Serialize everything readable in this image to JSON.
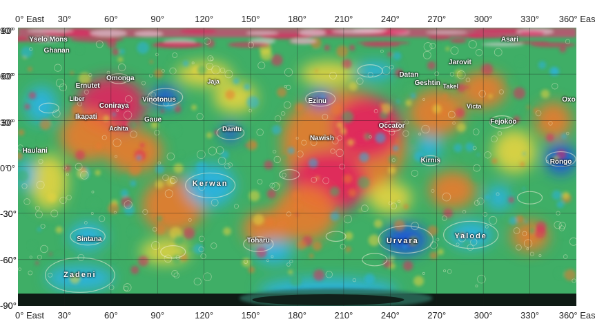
{
  "top_ticks": [
    "0° East",
    "30°",
    "60°",
    "90°",
    "120°",
    "150°",
    "180°",
    "210°",
    "240°",
    "270°",
    "300°",
    "330°",
    "360° East"
  ],
  "bottom_ticks": [
    "0° East",
    "30°",
    "60°",
    "90°",
    "120°",
    "150°",
    "180°",
    "210°",
    "240°",
    "270°",
    "300°",
    "330°",
    "360° East"
  ],
  "lat_ticks": [
    "90°",
    "60°",
    "30°",
    "0°",
    "-30°",
    "-60°",
    "-90°"
  ],
  "features": [
    {
      "name": "Yselo Mons",
      "lon": 15,
      "lat": 82
    },
    {
      "name": "Ghanan",
      "lon": 25,
      "lat": 75
    },
    {
      "name": "Asari",
      "lon": 317,
      "lat": 82
    },
    {
      "name": "Jarovit",
      "lon": 285,
      "lat": 67
    },
    {
      "name": "Datan",
      "lon": 252,
      "lat": 59
    },
    {
      "name": "Geshtin",
      "lon": 264,
      "lat": 54
    },
    {
      "name": "Takel",
      "lon": 279,
      "lat": 52
    },
    {
      "name": "Omonga",
      "lon": 66,
      "lat": 57
    },
    {
      "name": "Ernutet",
      "lon": 45,
      "lat": 52
    },
    {
      "name": "Jaja",
      "lon": 126,
      "lat": 55
    },
    {
      "name": "Liber",
      "lon": 38,
      "lat": 44
    },
    {
      "name": "Vinotonus",
      "lon": 91,
      "lat": 43
    },
    {
      "name": "Ezinu",
      "lon": 193,
      "lat": 42
    },
    {
      "name": "Coniraya",
      "lon": 62,
      "lat": 39
    },
    {
      "name": "Ikapati",
      "lon": 44,
      "lat": 32
    },
    {
      "name": "Victa",
      "lon": 294,
      "lat": 39
    },
    {
      "name": "Oxo",
      "lon": 358,
      "lat": 43
    },
    {
      "name": "Gaue",
      "lon": 87,
      "lat": 30
    },
    {
      "name": "Fejokoo",
      "lon": 313,
      "lat": 29
    },
    {
      "name": "Achita",
      "lon": 65,
      "lat": 25
    },
    {
      "name": "Dantu",
      "lon": 138,
      "lat": 24
    },
    {
      "name": "Occator",
      "lon": 241,
      "lat": 26
    },
    {
      "name": "Nawish",
      "lon": 196,
      "lat": 18
    },
    {
      "name": "Haulani",
      "lon": 11,
      "lat": 10
    },
    {
      "name": "Kirnis",
      "lon": 266,
      "lat": 4
    },
    {
      "name": "Rongo",
      "lon": 350,
      "lat": 3
    },
    {
      "name": "Kerwan",
      "lon": 124,
      "lat": -11
    },
    {
      "name": "Sintana",
      "lon": 46,
      "lat": -47
    },
    {
      "name": "Toharu",
      "lon": 155,
      "lat": -48
    },
    {
      "name": "Urvara",
      "lon": 248,
      "lat": -48
    },
    {
      "name": "Yalode",
      "lon": 292,
      "lat": -45
    },
    {
      "name": "Zadeni",
      "lon": 40,
      "lat": -70
    }
  ],
  "colors": {
    "low": "#1f55d8",
    "low_mid": "#2bb3e0",
    "mid": "#3fae66",
    "mid_high": "#e6d440",
    "high": "#ea7a2e",
    "highest": "#e0245e",
    "pole": "#0e1a14"
  }
}
